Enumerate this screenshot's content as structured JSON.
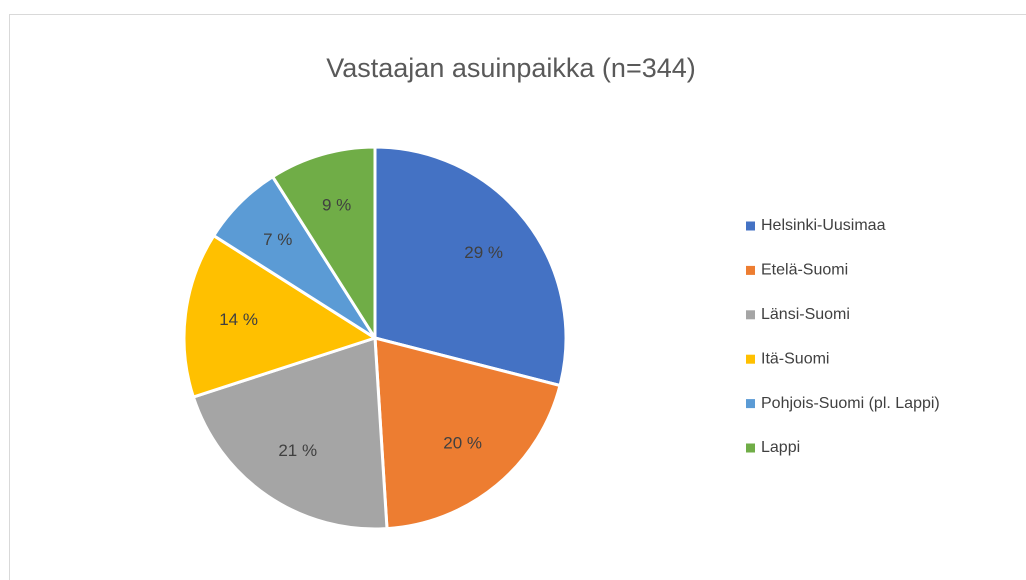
{
  "chart_data": {
    "type": "pie",
    "title": "Vastaajan asuinpaikka (n=344)",
    "categories": [
      "Helsinki-Uusimaa",
      "Etelä-Suomi",
      "Länsi-Suomi",
      "Itä-Suomi",
      "Pohjois-Suomi (pl. Lappi)",
      "Lappi"
    ],
    "values": [
      29,
      20,
      21,
      14,
      7,
      9
    ],
    "value_labels": [
      "29 %",
      "20 %",
      "21 %",
      "14 %",
      "7 %",
      "9 %"
    ],
    "colors": [
      "#4472c4",
      "#ed7d31",
      "#a5a5a5",
      "#ffc000",
      "#5b9bd5",
      "#70ad47"
    ],
    "legend": "right"
  }
}
